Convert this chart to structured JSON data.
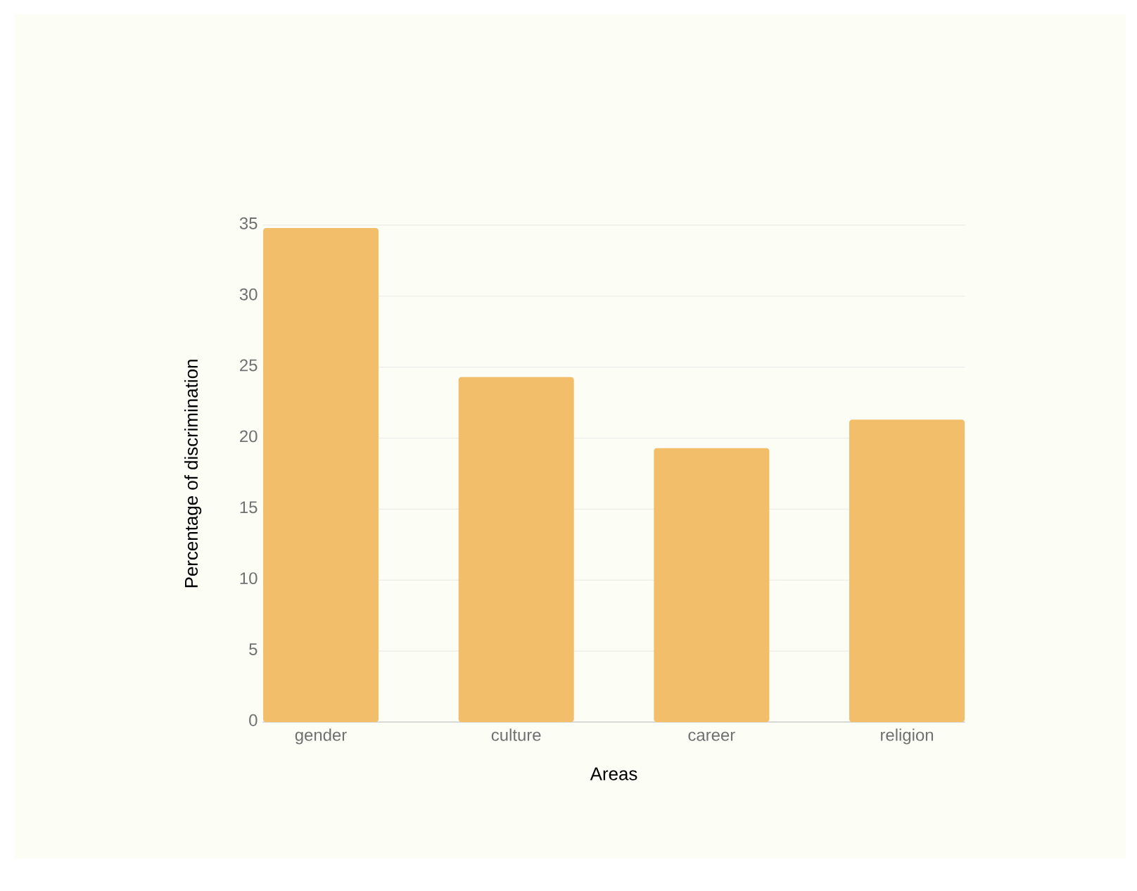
{
  "chart_data": {
    "type": "bar",
    "xlabel": "Areas",
    "ylabel": "Percentage of discrimination",
    "categories": [
      "gender",
      "culture",
      "career",
      "religion"
    ],
    "values": [
      34.8,
      24.3,
      19.3,
      21.3
    ],
    "color": "#f2be6a",
    "ylim": [
      0,
      35
    ],
    "yticks": [
      0,
      5,
      10,
      15,
      20,
      25,
      30,
      35
    ],
    "grid": "y"
  }
}
